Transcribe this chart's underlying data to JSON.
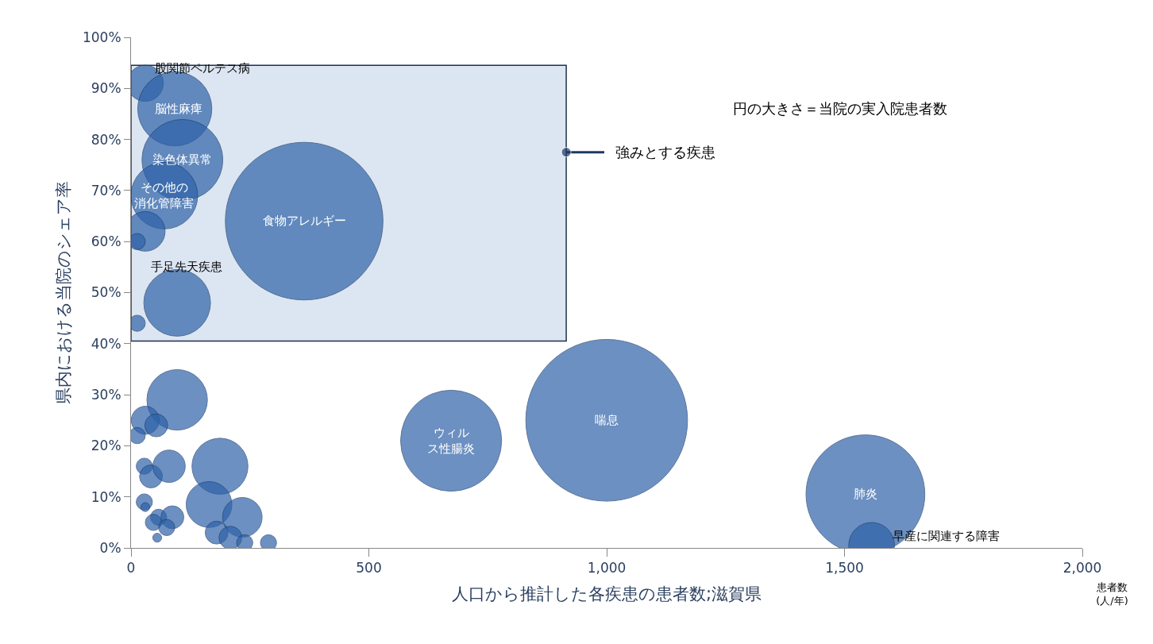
{
  "chart_data": {
    "type": "bubble",
    "xlabel": "人口から推計した各疾患の患者数;滋賀県",
    "ylabel": "県内における当院のシェア率",
    "x": [
      30,
      92,
      108,
      70,
      30,
      13,
      97,
      13,
      364,
      97,
      30,
      53,
      13,
      28,
      42,
      80,
      187,
      28,
      30,
      58,
      47,
      87,
      75,
      55,
      164,
      234,
      180,
      209,
      239,
      289,
      673,
      1000,
      1544,
      1557
    ],
    "series": [
      {
        "color": "#2e62a8",
        "values": [
          91,
          86,
          76,
          69,
          62,
          60,
          48,
          44,
          64,
          29,
          25,
          24,
          22,
          16,
          14,
          16,
          16,
          9,
          8,
          6,
          5,
          6,
          4,
          2,
          8.5,
          6,
          3,
          2,
          1,
          1,
          21,
          25,
          10.5,
          0.5
        ],
        "sizes": [
          0.05,
          0.21,
          0.25,
          0.17,
          0.06,
          0.01,
          0.17,
          0.01,
          0.95,
          0.14,
          0.03,
          0.02,
          0.01,
          0.01,
          0.02,
          0.04,
          0.12,
          0.01,
          0.003,
          0.01,
          0.01,
          0.02,
          0.01,
          0.003,
          0.08,
          0.06,
          0.02,
          0.02,
          0.01,
          0.01,
          0.39,
          1,
          0.54,
          0.08
        ]
      }
    ],
    "xlim": [
      0,
      2000
    ],
    "ylim": [
      0,
      100
    ],
    "xticks": [
      0,
      500,
      {
        "value": 1000,
        "label": "1,000"
      },
      {
        "value": 1500,
        "label": "1,500"
      },
      {
        "value": 2000,
        "label": "2,000"
      }
    ],
    "yticks": [
      {
        "value": 0,
        "label": "0%"
      },
      {
        "value": 10,
        "label": "10%"
      },
      {
        "value": 20,
        "label": "20%"
      },
      {
        "value": 30,
        "label": "30%"
      },
      {
        "value": 40,
        "label": "40%"
      },
      {
        "value": 50,
        "label": "50%"
      },
      {
        "value": 60,
        "label": "60%"
      },
      {
        "value": 70,
        "label": "70%"
      },
      {
        "value": 80,
        "label": "80%"
      },
      {
        "value": 90,
        "label": "90%"
      },
      {
        "value": 100,
        "label": "100%"
      }
    ],
    "bands": [
      {
        "axis": "y",
        "from": 40.5,
        "to": 94.5,
        "label": "強みとする疾患",
        "color": "#dce6f2"
      }
    ],
    "annotations": [
      {
        "text": "股関節ペルテス病",
        "x": 150,
        "y": 94
      },
      {
        "text": "脳性麻痺",
        "x": 100,
        "y": 86
      },
      {
        "text": "染色体異常",
        "x": 108,
        "y": 76
      },
      {
        "text": "その他の消化管障害",
        "x": 70,
        "y": 69
      },
      {
        "text": "食物アレルギー",
        "x": 364,
        "y": 64
      },
      {
        "text": "手足先天疾患",
        "x": 117,
        "y": 55
      },
      {
        "text": "ウィルス性腸炎",
        "x": 673,
        "y": 21
      },
      {
        "text": "喘息",
        "x": 1000,
        "y": 25
      },
      {
        "text": "肺炎",
        "x": 1544,
        "y": 10.5
      },
      {
        "text": "早産に関連する障害",
        "x": 1557,
        "y": 0.5
      },
      "円の大きさ＝当院の実入院患者数",
      "患者数\n(人/年)"
    ],
    "grid": false
  }
}
